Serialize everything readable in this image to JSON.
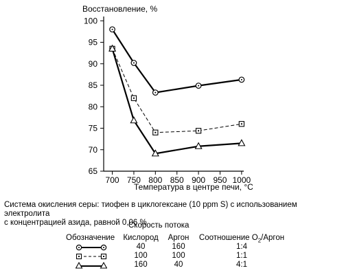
{
  "chart_data": {
    "type": "line",
    "ylabel": "Восстановление, %",
    "xlabel": "Температура в центре печи, °C",
    "x": [
      700,
      750,
      800,
      900,
      1000
    ],
    "xticks": [
      "700",
      "750",
      "800",
      "850",
      "900",
      "950",
      "1000"
    ],
    "yticks": [
      "65",
      "70",
      "75",
      "80",
      "85",
      "90",
      "95",
      "100"
    ],
    "xlim": [
      680,
      1005
    ],
    "ylim": [
      65,
      101
    ],
    "grid": false,
    "series": [
      {
        "marker": "circle",
        "style": "solid-thick",
        "values": [
          98,
          90.2,
          83.3,
          84.9,
          86.3
        ]
      },
      {
        "marker": "square",
        "style": "dashed",
        "values": [
          93.5,
          82,
          74,
          74.4,
          76
        ]
      },
      {
        "marker": "triangle",
        "style": "solid-thick",
        "values": [
          93.5,
          76.8,
          69.1,
          70.8,
          71.5
        ]
      }
    ]
  },
  "note": {
    "line1": "Система окисления серы: тиофен в циклогексане (10 ppm S) с использованием электролита",
    "line2": "с концентрацией азида, равной 0,06 %"
  },
  "legend": {
    "flow_header": "Скорость потока",
    "col_designation": "Обозначение",
    "col_oxygen": "Кислород",
    "col_argon": "Аргон",
    "col_ratio_prefix": "Соотношение О",
    "col_ratio_sub": "2",
    "col_ratio_suffix": "/Аргон",
    "rows": [
      {
        "oxygen": "40",
        "argon": "160",
        "ratio": "1:4"
      },
      {
        "oxygen": "100",
        "argon": "100",
        "ratio": "1:1"
      },
      {
        "oxygen": "160",
        "argon": "40",
        "ratio": "4:1"
      }
    ]
  }
}
